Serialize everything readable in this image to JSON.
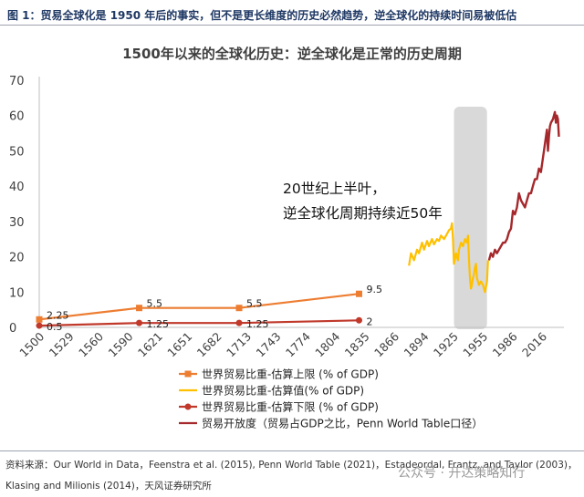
{
  "figure_title": "图 1：贸易全球化是 1950 年后的事实，但不是更长维度的历史必然趋势，逆全球化的持续时间易被低估",
  "source": "资料来源：Our World in Data，Feenstra et al. (2015), Penn World Table (2021)，Estadeordal, Frantz, and Taylor (2003)，Klasing and Milionis (2014)，天风证券研究所",
  "watermark": "公众号 · 开达策略知行",
  "colors": {
    "upper": "#ED7D31",
    "estimate": "#FFC000",
    "lower": "#C0392B",
    "openness": "#A5282C",
    "shade": "#D9D9D9",
    "title": "#1f3864"
  },
  "chart_data": {
    "type": "line",
    "title": "1500年以来的全球化历史：逆全球化是正常的历史周期",
    "xlabel": "",
    "ylabel": "",
    "xlim": [
      1500,
      2025
    ],
    "ylim": [
      0,
      70
    ],
    "yticks": [
      0,
      10,
      20,
      30,
      40,
      50,
      60,
      70
    ],
    "xticks": [
      "1500",
      "1529",
      "1560",
      "1590",
      "1621",
      "1651",
      "1682",
      "1713",
      "1743",
      "1774",
      "1804",
      "1835",
      "1866",
      "1894",
      "1925",
      "1955",
      "1986",
      "2016"
    ],
    "grid": false,
    "legend_position": "bottom",
    "annotation": [
      "20世纪上半叶，",
      "逆全球化周期持续近50年"
    ],
    "shaded_range": [
      1915,
      1948
    ],
    "series": [
      {
        "name": "世界贸易比重-估算上限 (% of GDP)",
        "key": "upper",
        "style": "line-square",
        "x": [
          1500,
          1600,
          1700,
          1820
        ],
        "y": [
          2.25,
          5.5,
          5.5,
          9.5
        ],
        "labels": [
          "2.25",
          "5.5",
          "5.5",
          "9.5"
        ]
      },
      {
        "name": "世界贸易比重-估算值(% of GDP)",
        "key": "estimate",
        "style": "line",
        "x": [
          1870,
          1872,
          1875,
          1878,
          1880,
          1883,
          1885,
          1888,
          1890,
          1893,
          1895,
          1898,
          1900,
          1902,
          1905,
          1908,
          1910,
          1912,
          1913,
          1914,
          1915,
          1917,
          1919,
          1920,
          1922,
          1924,
          1926,
          1928,
          1929,
          1930,
          1931,
          1932,
          1933,
          1934,
          1935,
          1936,
          1937,
          1938,
          1940,
          1942,
          1944,
          1946,
          1948,
          1949
        ],
        "y": [
          17.5,
          21,
          19,
          22,
          21,
          24,
          22,
          24.5,
          23,
          25,
          23.5,
          25,
          24.5,
          26,
          25,
          26.5,
          27.5,
          28,
          29.5,
          25,
          18,
          21,
          19,
          22,
          24,
          23,
          25,
          24,
          26,
          19,
          14,
          11,
          12,
          14,
          15,
          17,
          18,
          14,
          12,
          13,
          12,
          10,
          13,
          19
        ]
      },
      {
        "name": "世界贸易比重-估算下限 (% of GDP)",
        "key": "lower",
        "style": "line-circle",
        "x": [
          1500,
          1600,
          1700,
          1820
        ],
        "y": [
          0.5,
          1.25,
          1.25,
          2
        ],
        "labels": [
          "0.5",
          "1.25",
          "1.25",
          "2"
        ]
      },
      {
        "name": "贸易开放度（贸易占GDP之比，Penn World Table口径）",
        "key": "openness",
        "style": "line",
        "x": [
          1950,
          1952,
          1954,
          1956,
          1958,
          1960,
          1962,
          1964,
          1966,
          1968,
          1970,
          1972,
          1974,
          1976,
          1978,
          1980,
          1982,
          1984,
          1986,
          1988,
          1990,
          1992,
          1994,
          1996,
          1998,
          2000,
          2002,
          2004,
          2006,
          2008,
          2009,
          2010,
          2011,
          2012,
          2014,
          2016,
          2017,
          2018,
          2019,
          2020
        ],
        "y": [
          19,
          21,
          20,
          22,
          21,
          22,
          23,
          24,
          24,
          25,
          27,
          28,
          33,
          32,
          34,
          38,
          36,
          35,
          34,
          36,
          38,
          38,
          40,
          42,
          42,
          45,
          44,
          48,
          52,
          56,
          50,
          54,
          57,
          58,
          59,
          61,
          58,
          60,
          59,
          54
        ]
      }
    ]
  }
}
